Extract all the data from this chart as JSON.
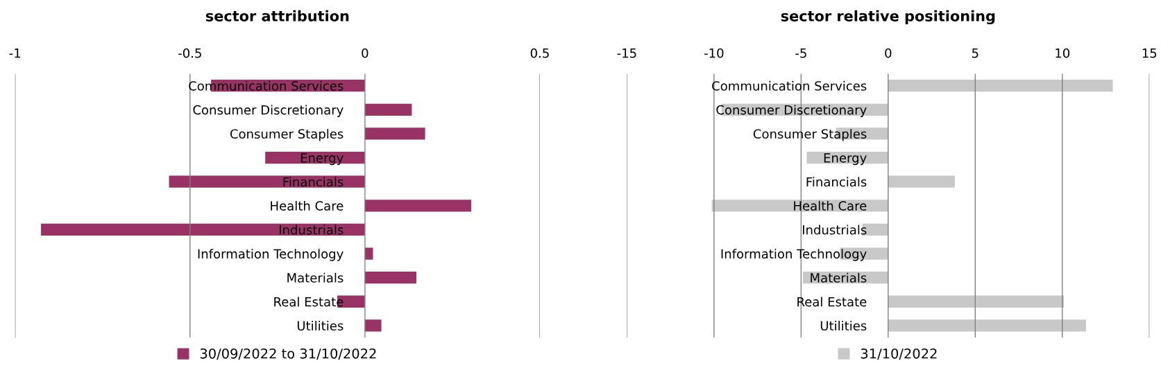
{
  "chart_data": [
    {
      "type": "bar",
      "orientation": "horizontal",
      "title": "sector attribution",
      "categories": [
        "Communication Services",
        "Consumer Discretionary",
        "Consumer Staples",
        "Energy",
        "Financials",
        "Health Care",
        "Industrials",
        "Information Technology",
        "Materials",
        "Real Estate",
        "Utilities"
      ],
      "series": [
        {
          "name": "30/09/2022 to 31/10/2022",
          "color": "#993366",
          "values": [
            -0.44,
            0.134,
            0.172,
            -0.285,
            -0.56,
            0.304,
            -0.926,
            0.023,
            0.147,
            -0.079,
            0.047
          ]
        }
      ],
      "xlim": [
        -1,
        0.5
      ],
      "xticks": [
        -1,
        -0.5,
        0,
        0.5
      ],
      "grid": "x",
      "legend": "bottom"
    },
    {
      "type": "bar",
      "orientation": "horizontal",
      "title": "sector relative positioning",
      "categories": [
        "Communication Services",
        "Consumer Discretionary",
        "Consumer Staples",
        "Energy",
        "Financials",
        "Health Care",
        "Industrials",
        "Information Technology",
        "Materials",
        "Real Estate",
        "Utilities"
      ],
      "series": [
        {
          "name": "31/10/2022",
          "color": "#c8c8c8",
          "values": [
            12.9,
            -9.57,
            -2.98,
            -4.68,
            3.83,
            -10.13,
            -1.49,
            -2.77,
            -4.9,
            10.09,
            11.36
          ]
        }
      ],
      "xlim": [
        -15,
        15
      ],
      "xticks": [
        -15,
        -10,
        -5,
        0,
        5,
        10,
        15
      ],
      "grid": "x",
      "legend": "bottom"
    }
  ]
}
